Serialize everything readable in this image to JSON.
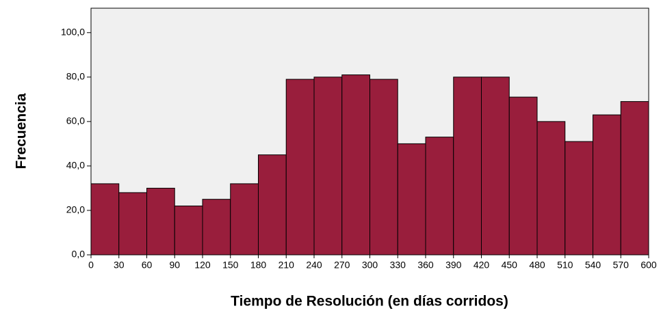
{
  "chart_data": {
    "type": "histogram",
    "xlabel": "Tiempo de Resolución (en días corridos)",
    "ylabel": "Frecuencia",
    "bins": [
      0,
      30,
      60,
      90,
      120,
      150,
      180,
      210,
      240,
      270,
      300,
      330,
      360,
      390,
      420,
      450,
      480,
      510,
      540,
      570,
      600
    ],
    "values": [
      32,
      28,
      30,
      22,
      25,
      32,
      45,
      79,
      80,
      81,
      79,
      50,
      53,
      80,
      80,
      71,
      60,
      51,
      63,
      69
    ],
    "color": "#991e3c",
    "xlim": [
      0,
      600
    ],
    "xticks": [
      0,
      30,
      60,
      90,
      120,
      150,
      180,
      210,
      240,
      270,
      300,
      330,
      360,
      390,
      420,
      450,
      480,
      510,
      540,
      570,
      600
    ],
    "ylim": [
      0,
      111
    ],
    "yticks": [
      {
        "value": 0,
        "label": "0,0"
      },
      {
        "value": 20,
        "label": "20,0"
      },
      {
        "value": 40,
        "label": "40,0"
      },
      {
        "value": 60,
        "label": "60,0"
      },
      {
        "value": 80,
        "label": "80,0"
      },
      {
        "value": 100,
        "label": "100,0"
      }
    ],
    "grid": false
  }
}
